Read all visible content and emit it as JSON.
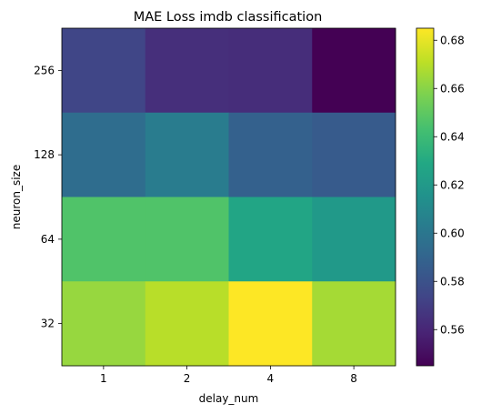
{
  "chart_data": {
    "type": "heatmap",
    "title": "MAE Loss imdb classification",
    "xlabel": "delay_num",
    "ylabel": "neuron_size",
    "x_categories": [
      "1",
      "2",
      "4",
      "8"
    ],
    "y_categories": [
      "256",
      "128",
      "64",
      "32"
    ],
    "values": [
      [
        0.574,
        0.564,
        0.563,
        0.545
      ],
      [
        0.595,
        0.603,
        0.588,
        0.585
      ],
      [
        0.646,
        0.646,
        0.627,
        0.62
      ],
      [
        0.663,
        0.67,
        0.685,
        0.666
      ]
    ],
    "colormap": "viridis",
    "colorbar": {
      "range": [
        0.545,
        0.685
      ],
      "ticks": [
        "0.56",
        "0.58",
        "0.60",
        "0.62",
        "0.64",
        "0.66",
        "0.68"
      ],
      "tick_values": [
        0.56,
        0.58,
        0.6,
        0.62,
        0.64,
        0.66,
        0.68
      ]
    },
    "grid": false
  }
}
